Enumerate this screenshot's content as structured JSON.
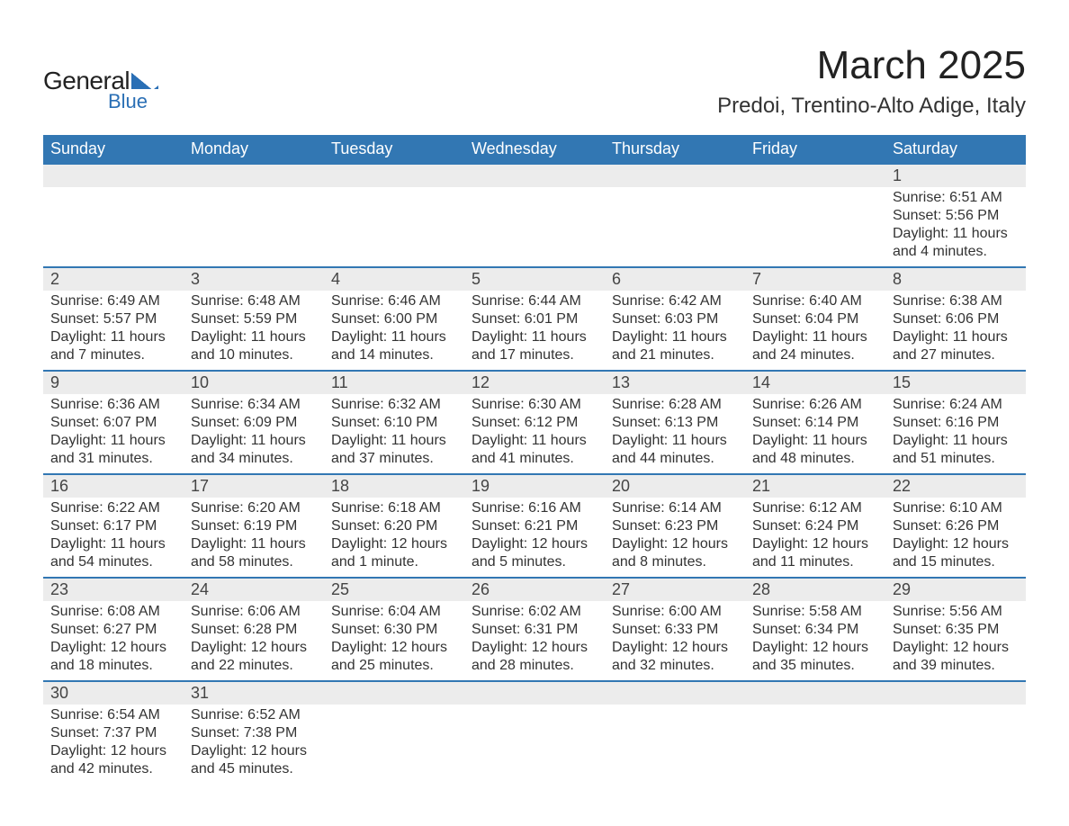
{
  "logo": {
    "text_general": "General",
    "text_blue": "Blue",
    "shape_color": "#2a6fb5"
  },
  "title": {
    "month": "March 2025",
    "location": "Predoi, Trentino-Alto Adige, Italy"
  },
  "colors": {
    "header_bg": "#3277b3",
    "header_text": "#ffffff",
    "daynum_bg": "#ececec",
    "row_border": "#3277b3",
    "text": "#333333",
    "logo_blue": "#2a6fb5"
  },
  "fonts": {
    "family": "Arial",
    "title_size_pt": 33,
    "location_size_pt": 18,
    "dayheader_size_pt": 14,
    "daynum_size_pt": 14,
    "detail_size_pt": 12
  },
  "calendar": {
    "day_headers": [
      "Sunday",
      "Monday",
      "Tuesday",
      "Wednesday",
      "Thursday",
      "Friday",
      "Saturday"
    ],
    "weeks": [
      [
        null,
        null,
        null,
        null,
        null,
        null,
        {
          "n": "1",
          "sunrise": "Sunrise: 6:51 AM",
          "sunset": "Sunset: 5:56 PM",
          "daylight": "Daylight: 11 hours and 4 minutes."
        }
      ],
      [
        {
          "n": "2",
          "sunrise": "Sunrise: 6:49 AM",
          "sunset": "Sunset: 5:57 PM",
          "daylight": "Daylight: 11 hours and 7 minutes."
        },
        {
          "n": "3",
          "sunrise": "Sunrise: 6:48 AM",
          "sunset": "Sunset: 5:59 PM",
          "daylight": "Daylight: 11 hours and 10 minutes."
        },
        {
          "n": "4",
          "sunrise": "Sunrise: 6:46 AM",
          "sunset": "Sunset: 6:00 PM",
          "daylight": "Daylight: 11 hours and 14 minutes."
        },
        {
          "n": "5",
          "sunrise": "Sunrise: 6:44 AM",
          "sunset": "Sunset: 6:01 PM",
          "daylight": "Daylight: 11 hours and 17 minutes."
        },
        {
          "n": "6",
          "sunrise": "Sunrise: 6:42 AM",
          "sunset": "Sunset: 6:03 PM",
          "daylight": "Daylight: 11 hours and 21 minutes."
        },
        {
          "n": "7",
          "sunrise": "Sunrise: 6:40 AM",
          "sunset": "Sunset: 6:04 PM",
          "daylight": "Daylight: 11 hours and 24 minutes."
        },
        {
          "n": "8",
          "sunrise": "Sunrise: 6:38 AM",
          "sunset": "Sunset: 6:06 PM",
          "daylight": "Daylight: 11 hours and 27 minutes."
        }
      ],
      [
        {
          "n": "9",
          "sunrise": "Sunrise: 6:36 AM",
          "sunset": "Sunset: 6:07 PM",
          "daylight": "Daylight: 11 hours and 31 minutes."
        },
        {
          "n": "10",
          "sunrise": "Sunrise: 6:34 AM",
          "sunset": "Sunset: 6:09 PM",
          "daylight": "Daylight: 11 hours and 34 minutes."
        },
        {
          "n": "11",
          "sunrise": "Sunrise: 6:32 AM",
          "sunset": "Sunset: 6:10 PM",
          "daylight": "Daylight: 11 hours and 37 minutes."
        },
        {
          "n": "12",
          "sunrise": "Sunrise: 6:30 AM",
          "sunset": "Sunset: 6:12 PM",
          "daylight": "Daylight: 11 hours and 41 minutes."
        },
        {
          "n": "13",
          "sunrise": "Sunrise: 6:28 AM",
          "sunset": "Sunset: 6:13 PM",
          "daylight": "Daylight: 11 hours and 44 minutes."
        },
        {
          "n": "14",
          "sunrise": "Sunrise: 6:26 AM",
          "sunset": "Sunset: 6:14 PM",
          "daylight": "Daylight: 11 hours and 48 minutes."
        },
        {
          "n": "15",
          "sunrise": "Sunrise: 6:24 AM",
          "sunset": "Sunset: 6:16 PM",
          "daylight": "Daylight: 11 hours and 51 minutes."
        }
      ],
      [
        {
          "n": "16",
          "sunrise": "Sunrise: 6:22 AM",
          "sunset": "Sunset: 6:17 PM",
          "daylight": "Daylight: 11 hours and 54 minutes."
        },
        {
          "n": "17",
          "sunrise": "Sunrise: 6:20 AM",
          "sunset": "Sunset: 6:19 PM",
          "daylight": "Daylight: 11 hours and 58 minutes."
        },
        {
          "n": "18",
          "sunrise": "Sunrise: 6:18 AM",
          "sunset": "Sunset: 6:20 PM",
          "daylight": "Daylight: 12 hours and 1 minute."
        },
        {
          "n": "19",
          "sunrise": "Sunrise: 6:16 AM",
          "sunset": "Sunset: 6:21 PM",
          "daylight": "Daylight: 12 hours and 5 minutes."
        },
        {
          "n": "20",
          "sunrise": "Sunrise: 6:14 AM",
          "sunset": "Sunset: 6:23 PM",
          "daylight": "Daylight: 12 hours and 8 minutes."
        },
        {
          "n": "21",
          "sunrise": "Sunrise: 6:12 AM",
          "sunset": "Sunset: 6:24 PM",
          "daylight": "Daylight: 12 hours and 11 minutes."
        },
        {
          "n": "22",
          "sunrise": "Sunrise: 6:10 AM",
          "sunset": "Sunset: 6:26 PM",
          "daylight": "Daylight: 12 hours and 15 minutes."
        }
      ],
      [
        {
          "n": "23",
          "sunrise": "Sunrise: 6:08 AM",
          "sunset": "Sunset: 6:27 PM",
          "daylight": "Daylight: 12 hours and 18 minutes."
        },
        {
          "n": "24",
          "sunrise": "Sunrise: 6:06 AM",
          "sunset": "Sunset: 6:28 PM",
          "daylight": "Daylight: 12 hours and 22 minutes."
        },
        {
          "n": "25",
          "sunrise": "Sunrise: 6:04 AM",
          "sunset": "Sunset: 6:30 PM",
          "daylight": "Daylight: 12 hours and 25 minutes."
        },
        {
          "n": "26",
          "sunrise": "Sunrise: 6:02 AM",
          "sunset": "Sunset: 6:31 PM",
          "daylight": "Daylight: 12 hours and 28 minutes."
        },
        {
          "n": "27",
          "sunrise": "Sunrise: 6:00 AM",
          "sunset": "Sunset: 6:33 PM",
          "daylight": "Daylight: 12 hours and 32 minutes."
        },
        {
          "n": "28",
          "sunrise": "Sunrise: 5:58 AM",
          "sunset": "Sunset: 6:34 PM",
          "daylight": "Daylight: 12 hours and 35 minutes."
        },
        {
          "n": "29",
          "sunrise": "Sunrise: 5:56 AM",
          "sunset": "Sunset: 6:35 PM",
          "daylight": "Daylight: 12 hours and 39 minutes."
        }
      ],
      [
        {
          "n": "30",
          "sunrise": "Sunrise: 6:54 AM",
          "sunset": "Sunset: 7:37 PM",
          "daylight": "Daylight: 12 hours and 42 minutes."
        },
        {
          "n": "31",
          "sunrise": "Sunrise: 6:52 AM",
          "sunset": "Sunset: 7:38 PM",
          "daylight": "Daylight: 12 hours and 45 minutes."
        },
        null,
        null,
        null,
        null,
        null
      ]
    ]
  }
}
